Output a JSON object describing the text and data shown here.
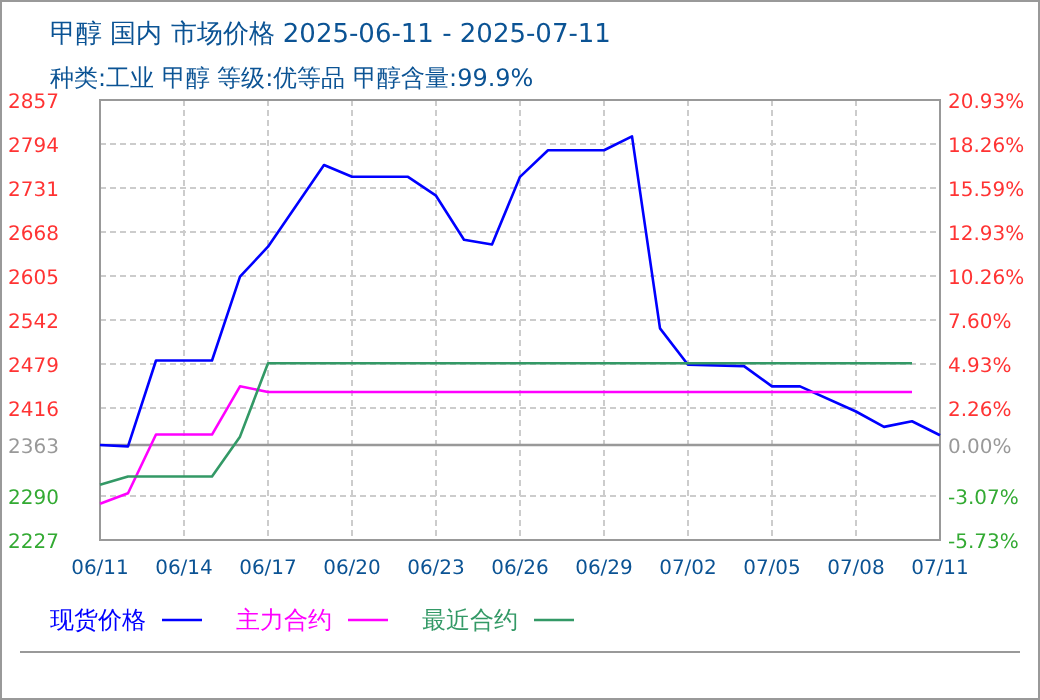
{
  "chart_data": {
    "type": "line",
    "title": "甲醇 国内 市场价格 2025-06-11 - 2025-07-11",
    "subtitle": "种类:工业 甲醇 等级:优等品 甲醇含量:99.9%",
    "xlim": [
      "2025-06-11",
      "2025-07-11"
    ],
    "xticks": [
      {
        "value": "2025-06-11",
        "label": "06/11"
      },
      {
        "value": "2025-06-14",
        "label": "06/14"
      },
      {
        "value": "2025-06-17",
        "label": "06/17"
      },
      {
        "value": "2025-06-20",
        "label": "06/20"
      },
      {
        "value": "2025-06-23",
        "label": "06/23"
      },
      {
        "value": "2025-06-26",
        "label": "06/26"
      },
      {
        "value": "2025-06-29",
        "label": "06/29"
      },
      {
        "value": "2025-07-02",
        "label": "07/02"
      },
      {
        "value": "2025-07-05",
        "label": "07/05"
      },
      {
        "value": "2025-07-08",
        "label": "07/08"
      },
      {
        "value": "2025-07-11",
        "label": "07/11"
      }
    ],
    "ylim": [
      2227,
      2857
    ],
    "yticks": [
      2227,
      2290,
      2363,
      2416,
      2479,
      2542,
      2605,
      2668,
      2731,
      2794,
      2857
    ],
    "y2lim": [
      -5.73,
      20.93
    ],
    "y2ticks": [
      {
        "value": -5.73,
        "label": "-5.73%"
      },
      {
        "value": -3.07,
        "label": "-3.07%"
      },
      {
        "value": 0,
        "label": "0.00%"
      },
      {
        "value": 2.26,
        "label": "2.26%"
      },
      {
        "value": 4.93,
        "label": "4.93%"
      },
      {
        "value": 7.6,
        "label": "7.60%"
      },
      {
        "value": 10.26,
        "label": "10.26%"
      },
      {
        "value": 12.93,
        "label": "12.93%"
      },
      {
        "value": 15.59,
        "label": "15.59%"
      },
      {
        "value": 18.26,
        "label": "18.26%"
      },
      {
        "value": 20.93,
        "label": "20.93%"
      }
    ],
    "ref_lines": [
      {
        "axis": "y",
        "value": 2363,
        "color": "#999999",
        "line_style": "solid"
      }
    ],
    "grid": true,
    "legend": "bottom",
    "marker": "none",
    "line_style": "solid",
    "series": [
      {
        "name": "现货价格",
        "color": "#0000ff",
        "x": [
          "2025-06-11",
          "2025-06-12",
          "2025-06-13",
          "2025-06-15",
          "2025-06-16",
          "2025-06-17",
          "2025-06-19",
          "2025-06-20",
          "2025-06-22",
          "2025-06-23",
          "2025-06-24",
          "2025-06-25",
          "2025-06-26",
          "2025-06-27",
          "2025-06-29",
          "2025-06-30",
          "2025-07-01",
          "2025-07-02",
          "2025-07-04",
          "2025-07-05",
          "2025-07-06",
          "2025-07-08",
          "2025-07-09",
          "2025-07-10",
          "2025-07-11"
        ],
        "values": [
          2363,
          2361,
          2484,
          2484,
          2604,
          2647,
          2764,
          2747,
          2747,
          2720,
          2657,
          2650,
          2747,
          2785,
          2785,
          2805,
          2530,
          2478,
          2476,
          2447,
          2447,
          2411,
          2389,
          2397,
          2377
        ]
      },
      {
        "name": "主力合约",
        "color": "#ff00ff",
        "x": [
          "2025-06-11",
          "2025-06-12",
          "2025-06-13",
          "2025-06-15",
          "2025-06-16",
          "2025-06-17",
          "2025-07-10"
        ],
        "values": [
          2279,
          2294,
          2378,
          2378,
          2447,
          2439,
          2439
        ]
      },
      {
        "name": "最近合约",
        "color": "#339966",
        "x": [
          "2025-06-11",
          "2025-06-12",
          "2025-06-15",
          "2025-06-16",
          "2025-06-17",
          "2025-07-10"
        ],
        "values": [
          2306,
          2318,
          2318,
          2375,
          2480,
          2480
        ]
      }
    ]
  }
}
